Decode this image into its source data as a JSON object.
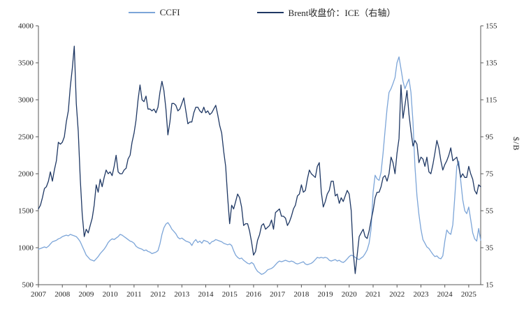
{
  "chart_data": {
    "type": "line",
    "title": "",
    "x_labels": [
      "2007",
      "2008",
      "2009",
      "2010",
      "2011",
      "2012",
      "2013",
      "2014",
      "2015",
      "2016",
      "2017",
      "2018",
      "2019",
      "2020",
      "2021",
      "2022",
      "2023",
      "2024",
      "2025"
    ],
    "points_per_year": 12,
    "left_axis": {
      "min": 500,
      "max": 4000,
      "ticks": [
        4000,
        3500,
        3000,
        2500,
        2000,
        1500,
        1000,
        500
      ]
    },
    "right_axis": {
      "min": 15,
      "max": 155,
      "ticks": [
        155,
        135,
        115,
        95,
        75,
        55,
        35,
        15
      ],
      "label": "$/B"
    },
    "grid": false,
    "legend_position": "top-center",
    "series": [
      {
        "name": "CCFI",
        "axis": "left",
        "color": "#7CA5D8",
        "values": [
          980,
          990,
          1000,
          1010,
          1000,
          1020,
          1050,
          1080,
          1090,
          1100,
          1120,
          1130,
          1150,
          1160,
          1170,
          1160,
          1180,
          1170,
          1160,
          1150,
          1120,
          1080,
          1020,
          960,
          900,
          870,
          840,
          830,
          820,
          850,
          880,
          920,
          950,
          980,
          1020,
          1070,
          1100,
          1120,
          1110,
          1130,
          1150,
          1180,
          1170,
          1150,
          1130,
          1110,
          1090,
          1080,
          1060,
          1020,
          1000,
          990,
          980,
          960,
          970,
          950,
          940,
          920,
          930,
          940,
          960,
          1050,
          1180,
          1270,
          1320,
          1340,
          1300,
          1250,
          1220,
          1190,
          1140,
          1120,
          1130,
          1110,
          1090,
          1080,
          1070,
          1030,
          1080,
          1110,
          1070,
          1090,
          1060,
          1100,
          1090,
          1080,
          1050,
          1080,
          1090,
          1110,
          1100,
          1090,
          1080,
          1060,
          1050,
          1040,
          1050,
          1030,
          960,
          900,
          870,
          850,
          860,
          830,
          810,
          790,
          780,
          800,
          780,
          720,
          680,
          660,
          640,
          650,
          670,
          700,
          710,
          720,
          740,
          770,
          800,
          820,
          810,
          820,
          830,
          820,
          810,
          820,
          810,
          790,
          780,
          790,
          800,
          810,
          780,
          770,
          780,
          790,
          810,
          840,
          870,
          860,
          870,
          860,
          870,
          860,
          830,
          820,
          830,
          840,
          820,
          830,
          810,
          800,
          820,
          850,
          880,
          900,
          890,
          870,
          850,
          840,
          860,
          880,
          920,
          970,
          1060,
          1260,
          1750,
          1980,
          1930,
          1910,
          2020,
          2280,
          2580,
          2880,
          3100,
          3150,
          3220,
          3300,
          3500,
          3580,
          3420,
          3250,
          3150,
          3220,
          3280,
          3100,
          2700,
          2100,
          1700,
          1450,
          1250,
          1110,
          1060,
          1010,
          990,
          950,
          910,
          880,
          890,
          860,
          850,
          890,
          1090,
          1240,
          1200,
          1180,
          1310,
          1680,
          2100,
          2170,
          1900,
          1650,
          1500,
          1460,
          1550,
          1380,
          1200,
          1120,
          1090,
          1260,
          1100
        ]
      },
      {
        "name": "Brent收盘价：ICE（右轴）",
        "axis": "right",
        "color": "#1F3864",
        "values": [
          56,
          58,
          62,
          67,
          68,
          71,
          76,
          71,
          77,
          82,
          92,
          91,
          92,
          95,
          103,
          109,
          122,
          132,
          144,
          113,
          98,
          72,
          53,
          41,
          45,
          43,
          47,
          51,
          58,
          69,
          65,
          72,
          68,
          73,
          77,
          75,
          76,
          74,
          79,
          85,
          76,
          75,
          75,
          77,
          78,
          83,
          85,
          92,
          97,
          104,
          115,
          123,
          115,
          114,
          117,
          110,
          110,
          109,
          110,
          108,
          111,
          119,
          125,
          120,
          110,
          96,
          103,
          113,
          113,
          112,
          109,
          110,
          113,
          116,
          109,
          102,
          103,
          103,
          108,
          111,
          111,
          109,
          108,
          111,
          108,
          109,
          107,
          108,
          110,
          112,
          107,
          101,
          97,
          87,
          79,
          62,
          48,
          58,
          56,
          60,
          64,
          62,
          57,
          47,
          48,
          48,
          44,
          38,
          31,
          33,
          39,
          42,
          47,
          48,
          45,
          46,
          47,
          50,
          45,
          54,
          55,
          56,
          52,
          52,
          51,
          47,
          49,
          52,
          56,
          58,
          63,
          64,
          69,
          65,
          66,
          72,
          77,
          75,
          74,
          73,
          79,
          81,
          65,
          57,
          60,
          64,
          66,
          71,
          71,
          63,
          64,
          59,
          62,
          60,
          63,
          66,
          64,
          55,
          33,
          21,
          31,
          41,
          43,
          45,
          41,
          40,
          44,
          50,
          55,
          62,
          65,
          65,
          68,
          73,
          74,
          71,
          75,
          84,
          81,
          75,
          86,
          94,
          123,
          105,
          112,
          120,
          107,
          98,
          90,
          93,
          91,
          81,
          84,
          83,
          79,
          84,
          76,
          75,
          80,
          86,
          93,
          89,
          82,
          77,
          80,
          82,
          85,
          89,
          82,
          83,
          84,
          79,
          73,
          75,
          73,
          73,
          79,
          75,
          72,
          66,
          64,
          69,
          68
        ]
      }
    ]
  }
}
